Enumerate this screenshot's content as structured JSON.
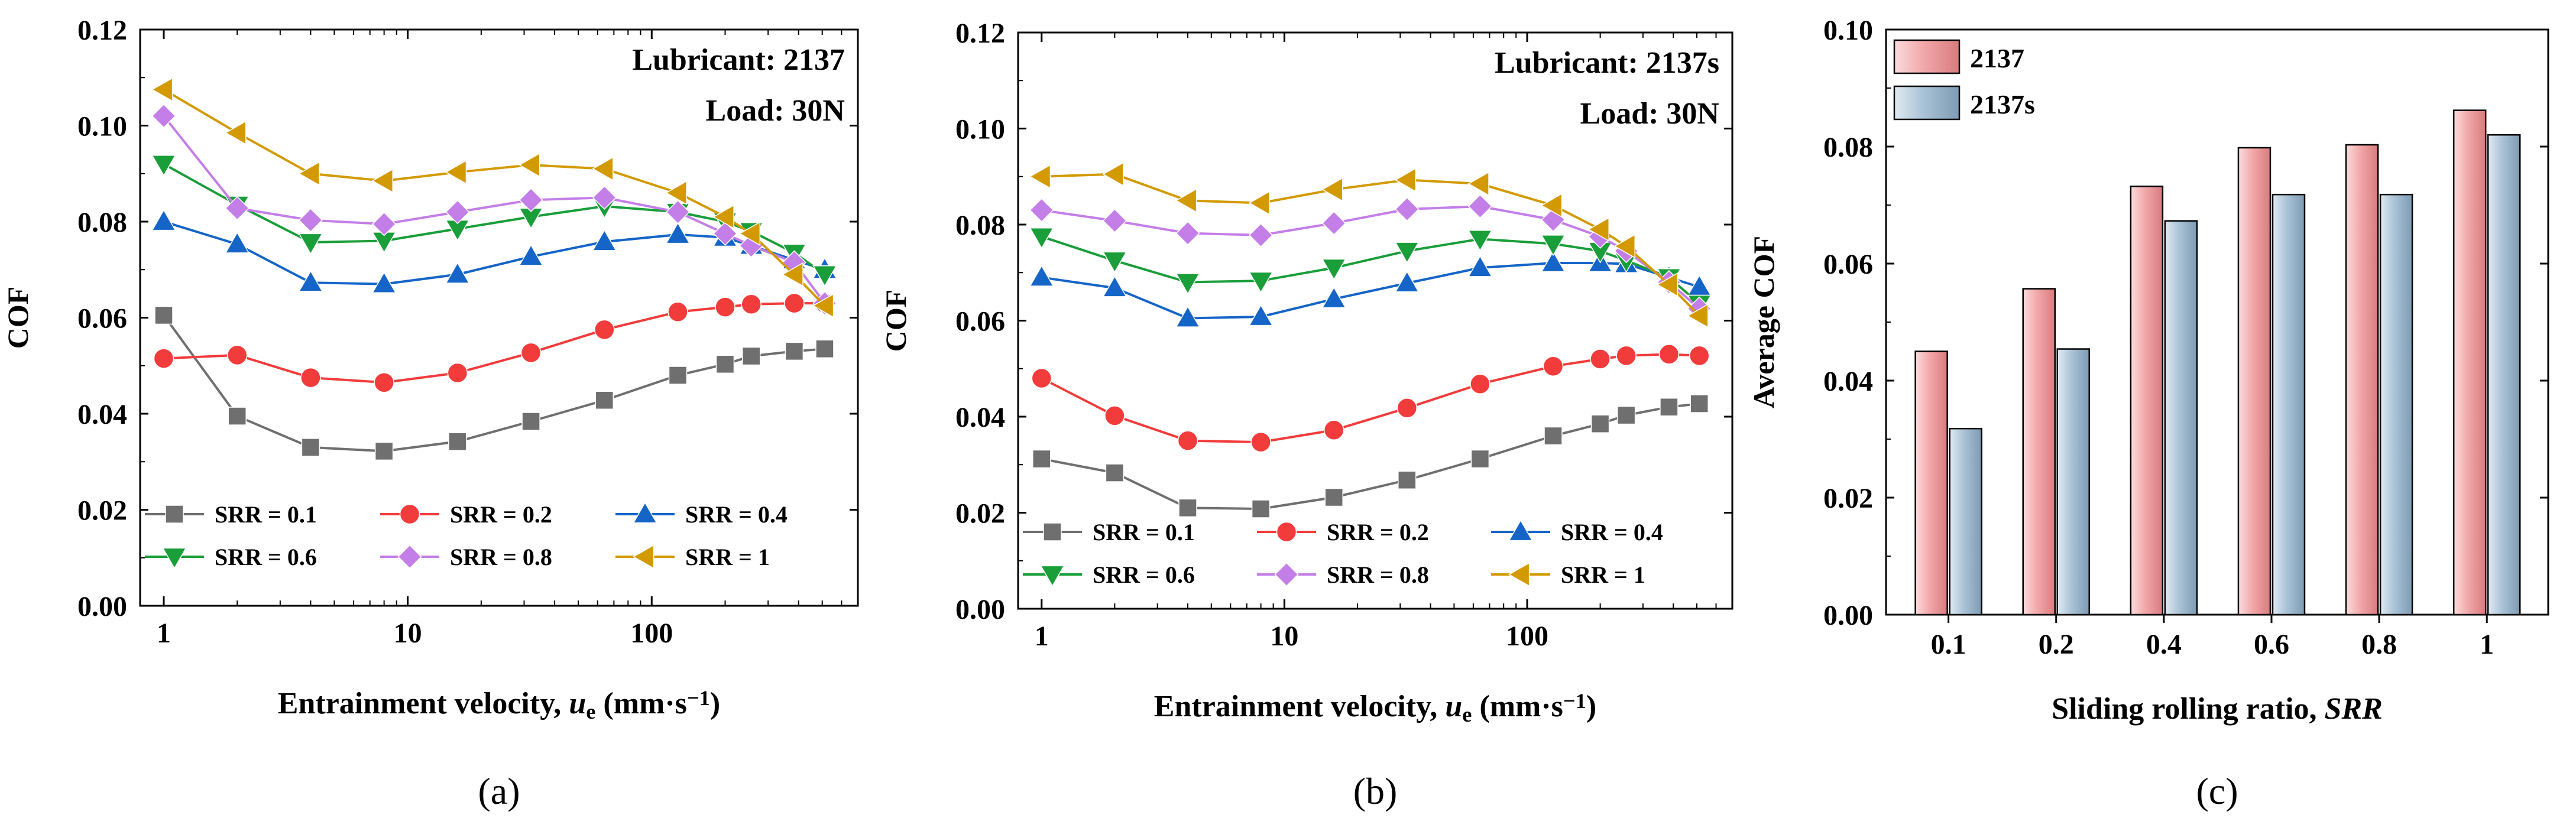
{
  "chart_data": [
    {
      "type": "line",
      "panel_label": "(a)",
      "annotations": [
        "Lubricant: 2137",
        "Load: 30N"
      ],
      "xlabel": "Entrainment velocity, ",
      "xlabel_italic": "u",
      "xlabel_sub": "e",
      "xlabel_unit": " (mm·s",
      "xlabel_sup": "−1",
      "xlabel_close": ")",
      "ylabel": "COF",
      "xscale": "log",
      "xlim": [
        0.8,
        700
      ],
      "ylim": [
        0,
        0.12
      ],
      "xticks": [
        1,
        10,
        100
      ],
      "yticks": [
        0,
        0.02,
        0.04,
        0.06,
        0.08,
        0.1,
        0.12
      ],
      "ytick_labels": [
        "0.00",
        "0.02",
        "0.04",
        "0.06",
        "0.08",
        "0.10",
        "0.12"
      ],
      "legend_position": "bottom",
      "x": [
        1,
        2,
        4,
        8,
        16,
        32,
        64,
        128,
        200,
        256,
        384,
        512
      ],
      "series": [
        {
          "name": "SRR = 0.1",
          "color": "#6f6f6f",
          "marker": "square",
          "values": [
            0.0605,
            0.0395,
            0.033,
            0.0322,
            0.0342,
            0.0384,
            0.0428,
            0.048,
            0.0503,
            0.052,
            0.053,
            0.0535
          ]
        },
        {
          "name": "SRR = 0.2",
          "color": "#f23b3b",
          "marker": "circle",
          "values": [
            0.0515,
            0.0522,
            0.0475,
            0.0465,
            0.0485,
            0.0527,
            0.0575,
            0.0612,
            0.0622,
            0.0628,
            0.063,
            0.063
          ]
        },
        {
          "name": "SRR = 0.4",
          "color": "#1565c8",
          "marker": "triangle-up",
          "values": [
            0.08,
            0.0753,
            0.0673,
            0.067,
            0.069,
            0.0727,
            0.0758,
            0.0773,
            0.0767,
            0.075,
            0.072,
            0.07
          ]
        },
        {
          "name": "SRR = 0.6",
          "color": "#1a9e3a",
          "marker": "triangle-down",
          "values": [
            0.092,
            0.0835,
            0.0757,
            0.076,
            0.0785,
            0.081,
            0.0832,
            0.082,
            0.08,
            0.078,
            0.0735,
            0.069
          ]
        },
        {
          "name": "SRR = 0.8",
          "color": "#c47ee8",
          "marker": "diamond",
          "values": [
            0.102,
            0.0828,
            0.0803,
            0.0795,
            0.082,
            0.0845,
            0.085,
            0.082,
            0.0775,
            0.075,
            0.0715,
            0.063
          ]
        },
        {
          "name": "SRR = 1",
          "color": "#d39a00",
          "marker": "triangle-left",
          "values": [
            0.1075,
            0.0985,
            0.09,
            0.0885,
            0.0903,
            0.0918,
            0.091,
            0.086,
            0.081,
            0.0775,
            0.069,
            0.0625
          ]
        }
      ]
    },
    {
      "type": "line",
      "panel_label": "(b)",
      "annotations": [
        "Lubricant: 2137s",
        "Load: 30N"
      ],
      "xlabel": "Entrainment velocity, ",
      "xlabel_italic": "u",
      "xlabel_sub": "e",
      "xlabel_unit": " (mm·s",
      "xlabel_sup": "−1",
      "xlabel_close": ")",
      "ylabel": "COF",
      "xscale": "log",
      "xlim": [
        0.8,
        700
      ],
      "ylim": [
        0,
        0.12
      ],
      "xticks": [
        1,
        10,
        100
      ],
      "yticks": [
        0,
        0.02,
        0.04,
        0.06,
        0.08,
        0.1,
        0.12
      ],
      "ytick_labels": [
        "0.00",
        "0.02",
        "0.04",
        "0.06",
        "0.08",
        "0.10",
        "0.12"
      ],
      "legend_position": "bottom",
      "x": [
        1,
        2,
        4,
        8,
        16,
        32,
        64,
        128,
        200,
        256,
        384,
        512
      ],
      "series": [
        {
          "name": "SRR = 0.1",
          "color": "#6f6f6f",
          "marker": "square",
          "values": [
            0.0312,
            0.0283,
            0.021,
            0.0208,
            0.0232,
            0.0268,
            0.0312,
            0.036,
            0.0385,
            0.0403,
            0.042,
            0.0427
          ]
        },
        {
          "name": "SRR = 0.2",
          "color": "#f23b3b",
          "marker": "circle",
          "values": [
            0.048,
            0.0402,
            0.035,
            0.0347,
            0.0372,
            0.0418,
            0.0468,
            0.0505,
            0.052,
            0.0527,
            0.053,
            0.0527
          ]
        },
        {
          "name": "SRR = 0.4",
          "color": "#1565c8",
          "marker": "triangle-up",
          "values": [
            0.069,
            0.0668,
            0.0605,
            0.0608,
            0.0645,
            0.0678,
            0.071,
            0.072,
            0.072,
            0.0718,
            0.069,
            0.067
          ]
        },
        {
          "name": "SRR = 0.6",
          "color": "#1a9e3a",
          "marker": "triangle-down",
          "values": [
            0.0775,
            0.0725,
            0.068,
            0.0683,
            0.071,
            0.0745,
            0.077,
            0.076,
            0.0745,
            0.0725,
            0.069,
            0.0635
          ]
        },
        {
          "name": "SRR = 0.8",
          "color": "#c47ee8",
          "marker": "diamond",
          "values": [
            0.083,
            0.0808,
            0.0782,
            0.0778,
            0.0803,
            0.0832,
            0.0838,
            0.081,
            0.0775,
            0.0745,
            0.068,
            0.0625
          ]
        },
        {
          "name": "SRR = 1",
          "color": "#d39a00",
          "marker": "triangle-left",
          "values": [
            0.09,
            0.0905,
            0.085,
            0.0845,
            0.0873,
            0.0893,
            0.0885,
            0.084,
            0.079,
            0.0755,
            0.0675,
            0.061
          ]
        }
      ]
    },
    {
      "type": "bar",
      "panel_label": "(c)",
      "xlabel": "Sliding rolling ratio, ",
      "xlabel_italic": "SRR",
      "ylabel": "Average COF",
      "ylim": [
        0,
        0.1
      ],
      "yticks": [
        0,
        0.02,
        0.04,
        0.06,
        0.08,
        0.1
      ],
      "ytick_labels": [
        "0.00",
        "0.02",
        "0.04",
        "0.06",
        "0.08",
        "0.10"
      ],
      "legend_position": "top-left",
      "categories": [
        "0.1",
        "0.2",
        "0.4",
        "0.6",
        "0.8",
        "1"
      ],
      "series": [
        {
          "name": "2137",
          "color": "#f2a7a9",
          "values": [
            0.045,
            0.0557,
            0.0732,
            0.0798,
            0.0803,
            0.0862
          ]
        },
        {
          "name": "2137s",
          "color": "#a9c2d6",
          "values": [
            0.0318,
            0.0454,
            0.0673,
            0.0718,
            0.0718,
            0.082
          ]
        }
      ]
    }
  ]
}
